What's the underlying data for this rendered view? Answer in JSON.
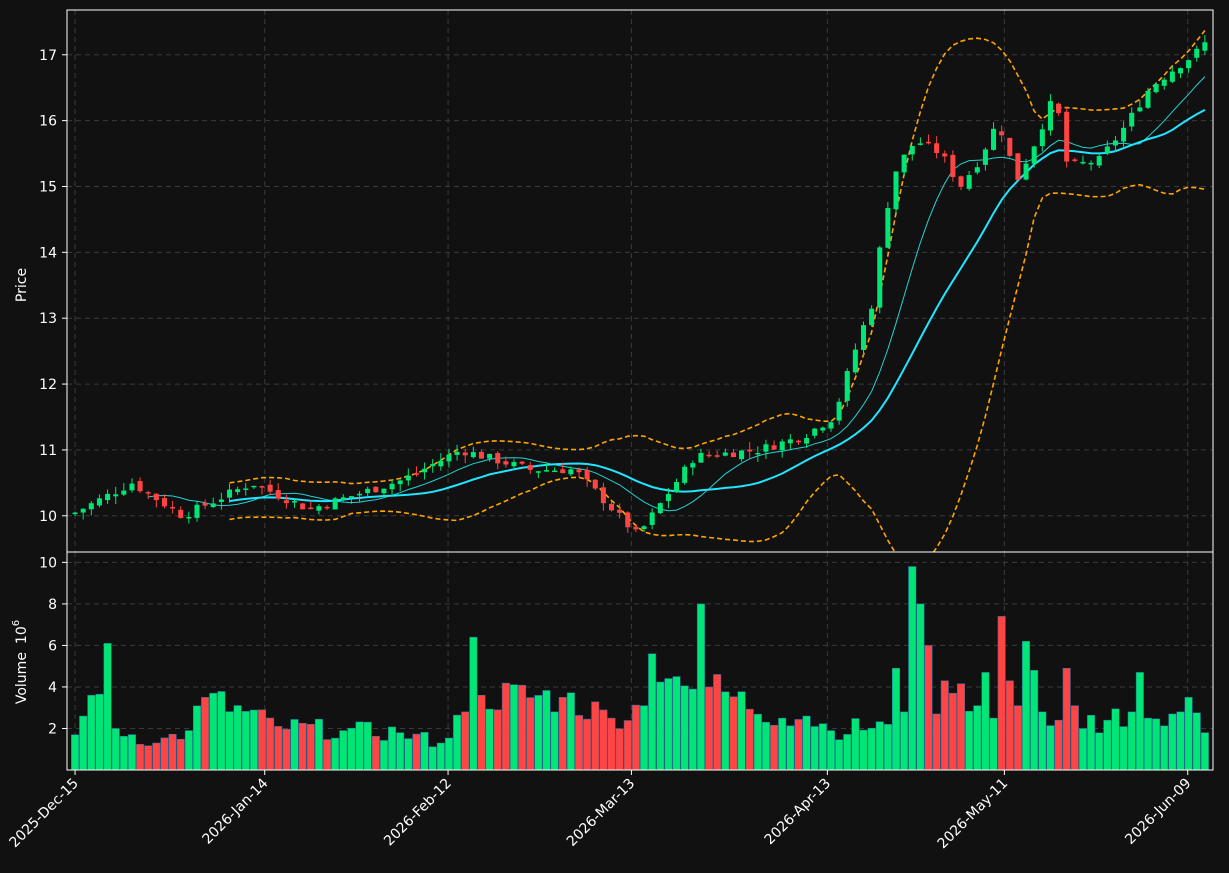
{
  "chart_data": {
    "type": "candlestick",
    "price_panel": {
      "ylabel": "Price",
      "yticks": [
        10,
        11,
        12,
        13,
        14,
        15,
        16,
        17
      ],
      "ylim": [
        9.45,
        17.68
      ]
    },
    "volume_panel": {
      "ylabel": "Volume",
      "ylabel_exponent": "10",
      "ylabel_power": "6",
      "yticks": [
        2,
        4,
        6,
        8,
        10
      ],
      "ylim": [
        0,
        10.5
      ]
    },
    "x_tick_labels": [
      "2025-Dec-15",
      "2026-Jan-14",
      "2026-Feb-12",
      "2026-Mar-13",
      "2026-Apr-13",
      "2026-May-11",
      "2026-Jun-09"
    ],
    "x_tick_days": [
      0,
      30,
      59,
      88,
      119,
      147,
      176
    ],
    "grid": true,
    "colors": {
      "background": "#111111",
      "up": "#00e676",
      "down": "#ff4444",
      "sma_short": "#22d3d3",
      "sma_long": "#22e5ff",
      "bollinger": "#ffa500",
      "grid": "#3a3a3a",
      "axis": "#ffffff"
    },
    "key_closes": [
      [
        0,
        10.05
      ],
      [
        9,
        10.5
      ],
      [
        17,
        10.0
      ],
      [
        28,
        10.5
      ],
      [
        37,
        10.1
      ],
      [
        52,
        10.55
      ],
      [
        61,
        11.0
      ],
      [
        72,
        10.7
      ],
      [
        79,
        10.7
      ],
      [
        89,
        9.7
      ],
      [
        98,
        10.9
      ],
      [
        108,
        11.0
      ],
      [
        115,
        11.2
      ],
      [
        120,
        11.5
      ],
      [
        124,
        12.7
      ],
      [
        126,
        13.2
      ],
      [
        128,
        14.5
      ],
      [
        130,
        15.3
      ],
      [
        133,
        15.7
      ],
      [
        137,
        15.5
      ],
      [
        140,
        15.0
      ],
      [
        143,
        15.4
      ],
      [
        146,
        16.0
      ],
      [
        149,
        15.1
      ],
      [
        152,
        15.7
      ],
      [
        155,
        16.4
      ],
      [
        157,
        15.3
      ],
      [
        162,
        15.4
      ],
      [
        166,
        15.9
      ],
      [
        170,
        16.5
      ],
      [
        174,
        16.8
      ],
      [
        177,
        17.0
      ],
      [
        180,
        17.3
      ]
    ],
    "key_volumes": [
      [
        0,
        1.7
      ],
      [
        1,
        2.6
      ],
      [
        2,
        3.6
      ],
      [
        3,
        3.65
      ],
      [
        4,
        6.1
      ],
      [
        5,
        2.0
      ],
      [
        10,
        1.3
      ],
      [
        14,
        1.9
      ],
      [
        16,
        3.5
      ],
      [
        25,
        2.1
      ],
      [
        33,
        1.9
      ],
      [
        40,
        1.8
      ],
      [
        45,
        1.3
      ],
      [
        48,
        2.8
      ],
      [
        49,
        6.4
      ],
      [
        50,
        3.6
      ],
      [
        60,
        3.5
      ],
      [
        66,
        2.5
      ],
      [
        70,
        3.1
      ],
      [
        71,
        5.6
      ],
      [
        74,
        4.5
      ],
      [
        76,
        3.9
      ],
      [
        77,
        8.0
      ],
      [
        78,
        4.0
      ],
      [
        87,
        2.5
      ],
      [
        90,
        2.6
      ],
      [
        93,
        1.9
      ],
      [
        100,
        2.2
      ],
      [
        101,
        4.9
      ],
      [
        102,
        2.8
      ],
      [
        103,
        9.8
      ],
      [
        104,
        8.0
      ],
      [
        105,
        6.0
      ],
      [
        106,
        2.7
      ],
      [
        107,
        4.3
      ],
      [
        108,
        3.7
      ],
      [
        111,
        3.1
      ],
      [
        112,
        4.7
      ],
      [
        113,
        2.5
      ],
      [
        114,
        7.4
      ],
      [
        115,
        4.3
      ],
      [
        116,
        3.1
      ],
      [
        117,
        6.2
      ],
      [
        118,
        4.8
      ],
      [
        119,
        2.8
      ],
      [
        121,
        2.4
      ],
      [
        122,
        4.9
      ],
      [
        123,
        3.1
      ],
      [
        124,
        2.0
      ],
      [
        127,
        2.4
      ],
      [
        130,
        2.8
      ],
      [
        131,
        4.7
      ],
      [
        132,
        2.5
      ],
      [
        135,
        2.7
      ],
      [
        136,
        2.8
      ],
      [
        137,
        3.5
      ],
      [
        139,
        1.8
      ],
      [
        140,
        3.0
      ]
    ]
  }
}
